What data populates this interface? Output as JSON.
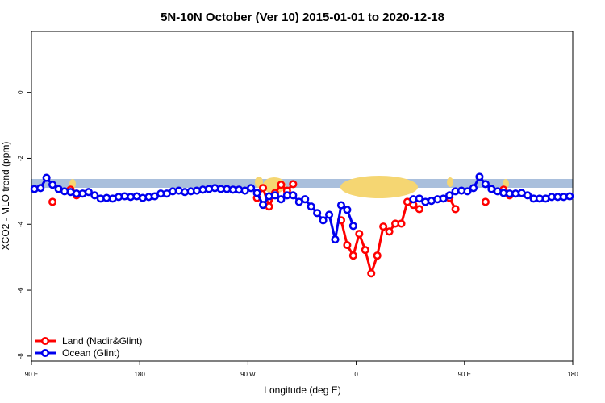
{
  "chart_data": {
    "type": "line",
    "title": "5N-10N October (Ver 10)   2015-01-01 to 2020-12-18",
    "x_label": "Longitude (deg E)",
    "y_label": "XCO2 - MLO trend (ppm)",
    "xlim": [
      90,
      540
    ],
    "xticks": [
      {
        "value": 90,
        "label": "90 E"
      },
      180,
      {
        "value": 270,
        "label": "90 W"
      },
      {
        "value": 360,
        "label": "0"
      },
      {
        "value": 450,
        "label": "90 E"
      },
      {
        "value": 540,
        "label": "180"
      }
    ],
    "ylim": [
      -8.15,
      1.85
    ],
    "yticks": [
      -8,
      -6,
      -4,
      -2,
      0
    ],
    "legend": "bottom-left",
    "x": [
      92.5,
      97.5,
      102.5,
      107.5,
      112.5,
      117.5,
      122.5,
      127.5,
      132.5,
      137.5,
      142.5,
      147.5,
      152.5,
      157.5,
      162.5,
      167.5,
      172.5,
      177.5,
      182.5,
      187.5,
      192.5,
      197.5,
      202.5,
      207.5,
      212.5,
      217.5,
      222.5,
      227.5,
      232.5,
      237.5,
      242.5,
      247.5,
      252.5,
      257.5,
      262.5,
      267.5,
      272.5,
      277.5,
      282.5,
      287.5,
      292.5,
      297.5,
      302.5,
      307.5,
      312.5,
      317.5,
      322.5,
      327.5,
      332.5,
      337.5,
      342.5,
      347.5,
      352.5,
      357.5,
      362.5,
      367.5,
      372.5,
      377.5,
      382.5,
      387.5,
      392.5,
      397.5,
      402.5,
      407.5,
      412.5,
      417.5,
      422.5,
      427.5,
      432.5,
      437.5,
      442.5,
      447.5,
      452.5,
      457.5,
      462.5,
      467.5,
      472.5,
      477.5,
      482.5,
      487.5,
      492.5,
      497.5,
      502.5,
      507.5,
      512.5,
      517.5,
      522.5,
      527.5,
      532.5,
      537.5
    ],
    "series": [
      {
        "name": "Land (Nadir&Glint)",
        "color": "#ff0000",
        "values": [
          null,
          null,
          null,
          -3.32,
          null,
          null,
          -2.95,
          -3.12,
          null,
          null,
          null,
          null,
          null,
          null,
          null,
          null,
          null,
          null,
          null,
          null,
          null,
          null,
          null,
          null,
          null,
          null,
          null,
          null,
          null,
          null,
          null,
          null,
          null,
          null,
          null,
          null,
          null,
          -3.2,
          -2.9,
          -3.46,
          -3.05,
          -2.8,
          -2.98,
          -2.78,
          null,
          null,
          null,
          null,
          null,
          null,
          null,
          -3.88,
          -4.63,
          -4.95,
          -4.29,
          -4.78,
          -5.49,
          -4.95,
          -4.07,
          -4.22,
          -3.98,
          -3.98,
          -3.32,
          -3.41,
          -3.54,
          null,
          null,
          null,
          null,
          -3.2,
          -3.54,
          null,
          null,
          null,
          null,
          -3.32,
          null,
          null,
          -2.95,
          -3.12,
          null,
          null,
          null,
          null,
          null,
          null,
          null,
          null,
          null,
          null
        ]
      },
      {
        "name": "Ocean (Glint)",
        "color": "#0000ee",
        "values": [
          -2.93,
          -2.9,
          -2.59,
          -2.8,
          -2.93,
          -3.0,
          -3.02,
          -3.07,
          -3.07,
          -3.02,
          -3.12,
          -3.22,
          -3.2,
          -3.22,
          -3.17,
          -3.15,
          -3.17,
          -3.15,
          -3.2,
          -3.17,
          -3.15,
          -3.07,
          -3.07,
          -3.0,
          -2.98,
          -3.02,
          -3.0,
          -2.98,
          -2.95,
          -2.93,
          -2.9,
          -2.93,
          -2.93,
          -2.95,
          -2.95,
          -2.98,
          -2.9,
          -3.05,
          -3.41,
          -3.15,
          -3.12,
          -3.24,
          -3.12,
          -3.12,
          -3.32,
          -3.24,
          -3.46,
          -3.66,
          -3.88,
          -3.71,
          -4.46,
          -3.42,
          -3.56,
          -4.05,
          null,
          null,
          null,
          null,
          null,
          null,
          null,
          null,
          null,
          -3.24,
          -3.22,
          -3.32,
          -3.29,
          -3.24,
          -3.22,
          -3.12,
          -3.0,
          -2.98,
          -3.0,
          -2.9,
          -2.56,
          -2.78,
          -2.93,
          -3.0,
          -3.05,
          -3.07,
          -3.07,
          -3.05,
          -3.12,
          -3.22,
          -3.22,
          -3.22,
          -3.17,
          -3.17,
          -3.17,
          -3.15
        ]
      }
    ]
  }
}
